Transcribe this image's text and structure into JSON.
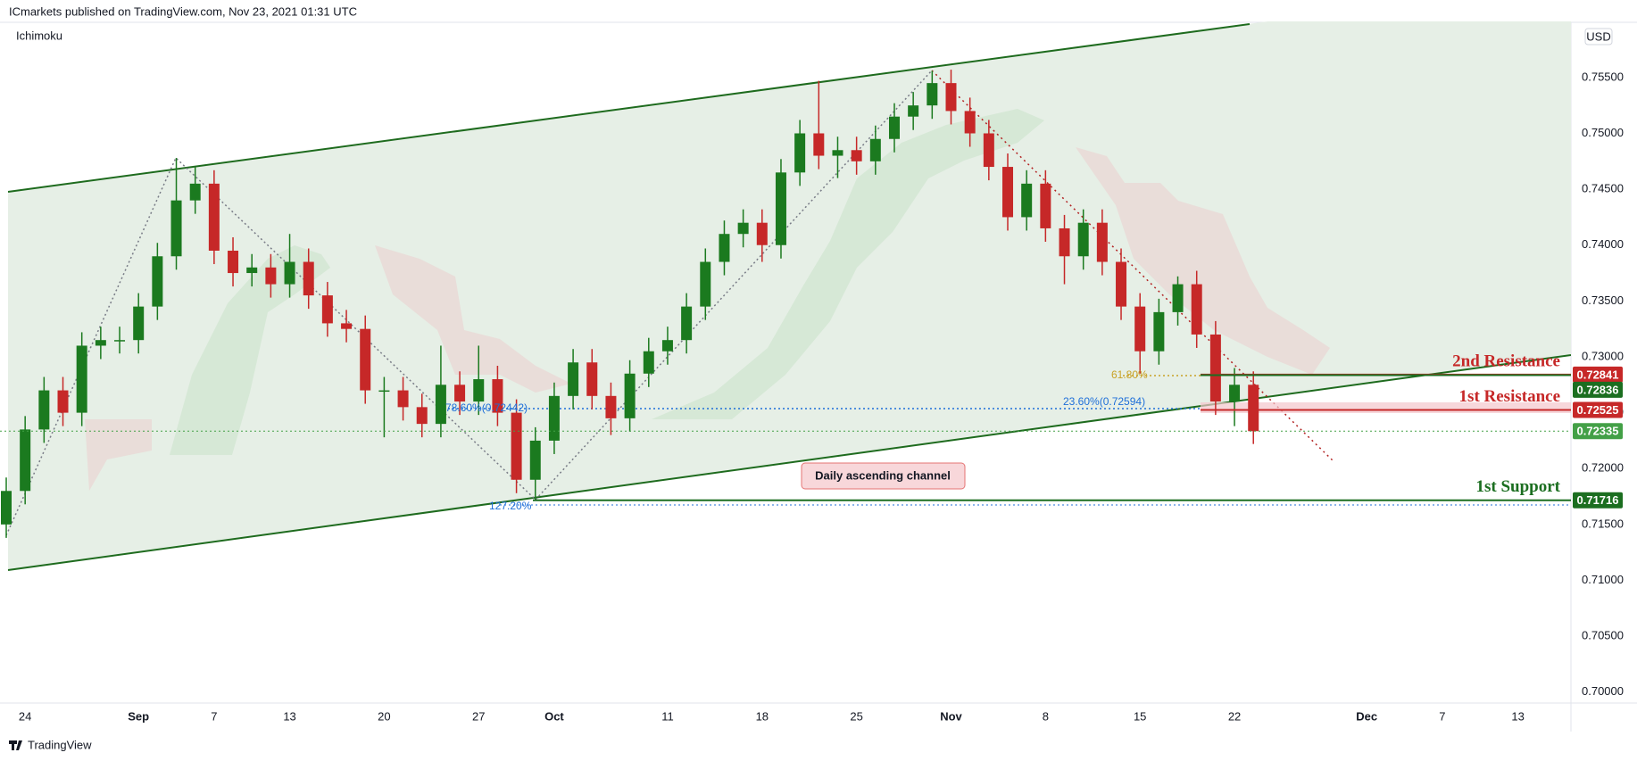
{
  "header": {
    "publisher": "ICmarkets published on TradingView.com, Nov 23, 2021 01:31 UTC",
    "indicator": "Ichimoku",
    "currency": "USD",
    "brand": "TradingView"
  },
  "chart_data": {
    "type": "candlestick",
    "categories": [
      null,
      "24",
      null,
      null,
      null,
      null,
      null,
      "Sep",
      null,
      null,
      null,
      "7",
      null,
      null,
      null,
      "13",
      null,
      null,
      null,
      null,
      "20",
      null,
      null,
      null,
      null,
      "27",
      null,
      null,
      null,
      "Oct",
      null,
      null,
      null,
      null,
      null,
      "11",
      null,
      null,
      null,
      null,
      "18",
      null,
      null,
      null,
      null,
      "25",
      null,
      null,
      null,
      null,
      "Nov",
      null,
      null,
      null,
      null,
      "8",
      null,
      null,
      null,
      null,
      "15",
      null,
      null,
      null,
      null,
      "22",
      null,
      null,
      null,
      null,
      null,
      null,
      "Dec",
      null,
      null,
      null,
      "7",
      null,
      null,
      null,
      "13",
      null,
      null
    ],
    "open": [
      0.715,
      0.718,
      0.7235,
      0.727,
      0.725,
      0.731,
      0.7315,
      0.7315,
      0.7345,
      0.739,
      0.744,
      0.7455,
      0.7395,
      0.7375,
      0.738,
      0.7365,
      0.7385,
      0.7355,
      0.733,
      0.7325,
      0.727,
      0.727,
      0.7255,
      0.724,
      0.7275,
      0.726,
      0.728,
      0.725,
      0.719,
      0.7225,
      0.7265,
      0.7295,
      0.7265,
      0.7245,
      0.7285,
      0.7305,
      0.7315,
      0.7345,
      0.7385,
      0.741,
      0.742,
      0.74,
      0.7465,
      0.75,
      0.748,
      0.7485,
      0.7475,
      0.7495,
      0.7515,
      0.7525,
      0.7545,
      0.752,
      0.75,
      0.747,
      0.7425,
      0.7455,
      0.7415,
      0.739,
      0.742,
      0.7385,
      0.7345,
      0.7305,
      0.734,
      0.7365,
      0.732,
      0.726,
      0.7275,
      null,
      null,
      null,
      null,
      null,
      null,
      null,
      null,
      null,
      null,
      null,
      null,
      null,
      null,
      null,
      null
    ],
    "high": [
      0.7192,
      0.7247,
      0.7282,
      0.7282,
      0.7322,
      0.7327,
      0.7327,
      0.7357,
      0.7402,
      0.7478,
      0.747,
      0.7467,
      0.7407,
      0.7392,
      0.7392,
      0.741,
      0.7397,
      0.7367,
      0.7342,
      0.7337,
      0.7282,
      0.7282,
      0.7267,
      0.731,
      0.7287,
      0.731,
      0.7292,
      0.7262,
      0.7237,
      0.7277,
      0.7307,
      0.7307,
      0.7277,
      0.7297,
      0.7317,
      0.7327,
      0.7357,
      0.7397,
      0.7422,
      0.7432,
      0.7432,
      0.7477,
      0.7512,
      0.7547,
      0.7497,
      0.7497,
      0.7507,
      0.7527,
      0.7537,
      0.7556,
      0.7557,
      0.7532,
      0.7512,
      0.7482,
      0.7467,
      0.7467,
      0.7427,
      0.7432,
      0.7432,
      0.7397,
      0.7357,
      0.7352,
      0.7372,
      0.7377,
      0.7332,
      0.729,
      0.7287,
      null,
      null,
      null,
      null,
      null,
      null,
      null,
      null,
      null,
      null,
      null,
      null,
      null,
      null,
      null,
      null
    ],
    "low": [
      0.7138,
      0.7168,
      0.7223,
      0.7238,
      0.7238,
      0.7298,
      0.7303,
      0.7303,
      0.7333,
      0.7378,
      0.7428,
      0.7383,
      0.7363,
      0.7363,
      0.7353,
      0.7353,
      0.7343,
      0.7318,
      0.7313,
      0.7258,
      0.7228,
      0.7243,
      0.7228,
      0.7228,
      0.7248,
      0.7248,
      0.7238,
      0.7178,
      0.7172,
      0.7213,
      0.7253,
      0.7253,
      0.723,
      0.7233,
      0.7273,
      0.7293,
      0.7303,
      0.7333,
      0.7373,
      0.7398,
      0.7385,
      0.7388,
      0.7453,
      0.7468,
      0.746,
      0.7463,
      0.7463,
      0.7483,
      0.7503,
      0.7513,
      0.7508,
      0.7488,
      0.7458,
      0.7413,
      0.7413,
      0.7403,
      0.7365,
      0.7378,
      0.7373,
      0.7333,
      0.7285,
      0.7293,
      0.7328,
      0.7308,
      0.7248,
      0.7238,
      0.7222,
      null,
      null,
      null,
      null,
      null,
      null,
      null,
      null,
      null,
      null,
      null,
      null,
      null,
      null,
      null,
      null
    ],
    "close": [
      0.718,
      0.7235,
      0.727,
      0.725,
      0.731,
      0.7315,
      0.7315,
      0.7345,
      0.739,
      0.744,
      0.7455,
      0.7395,
      0.7375,
      0.738,
      0.7365,
      0.7385,
      0.7355,
      0.733,
      0.7325,
      0.727,
      0.727,
      0.7255,
      0.724,
      0.7275,
      0.726,
      0.728,
      0.725,
      0.719,
      0.7225,
      0.7265,
      0.7295,
      0.7265,
      0.7245,
      0.7285,
      0.7305,
      0.7315,
      0.7345,
      0.7385,
      0.741,
      0.742,
      0.74,
      0.7465,
      0.75,
      0.748,
      0.7485,
      0.7475,
      0.7495,
      0.7515,
      0.7525,
      0.7545,
      0.752,
      0.75,
      0.747,
      0.7425,
      0.7455,
      0.7415,
      0.739,
      0.742,
      0.7385,
      0.7345,
      0.7305,
      0.734,
      0.7365,
      0.732,
      0.726,
      0.7275,
      0.72335,
      null,
      null,
      null,
      null,
      null,
      null,
      null,
      null,
      null,
      null,
      null,
      null,
      null,
      null,
      null,
      null
    ],
    "up_color": "#1b7a1f",
    "down_color": "#c62828",
    "ylim": [
      0.6991,
      0.7597
    ],
    "yticks": [
      {
        "value": 0.7,
        "label": "0.70000"
      },
      {
        "value": 0.705,
        "label": "0.70500"
      },
      {
        "value": 0.71,
        "label": "0.71000"
      },
      {
        "value": 0.715,
        "label": "0.71500"
      },
      {
        "value": 0.72,
        "label": "0.72000"
      },
      {
        "value": 0.725,
        "label": "0.72500"
      },
      {
        "value": 0.73,
        "label": "0.73000"
      },
      {
        "value": 0.735,
        "label": "0.73500"
      },
      {
        "value": 0.74,
        "label": "0.74000"
      },
      {
        "value": 0.745,
        "label": "0.74500"
      },
      {
        "value": 0.75,
        "label": "0.75000"
      },
      {
        "value": 0.755,
        "label": "0.75500"
      }
    ],
    "grid": false,
    "levels": [
      {
        "name": "2nd Resistance",
        "value": 0.72841,
        "color": "#c62828"
      },
      {
        "value": 0.72836,
        "color": "#1b6e20"
      },
      {
        "name": "1st Resistance",
        "value": 0.72525,
        "color": "#c62828"
      },
      {
        "value": 0.72335,
        "color": "#43a047"
      },
      {
        "name": "1st Support",
        "value": 0.71716,
        "color": "#1b6e20"
      }
    ],
    "annotations": [
      "Daily ascending channel",
      "61.80%",
      "23.60%(0.72594)",
      "78.60%(0.72442)",
      "127.20%"
    ]
  }
}
